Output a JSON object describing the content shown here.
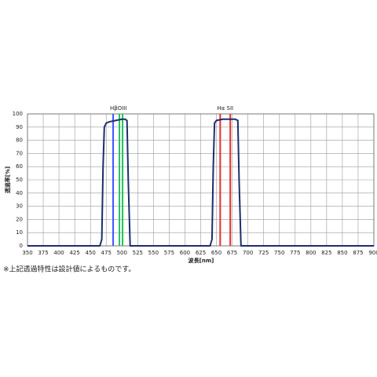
{
  "chart_data": {
    "type": "line",
    "x_label": "波長[nm]",
    "y_label": "透過率[%]",
    "x": [
      350,
      465,
      468,
      470,
      472,
      475,
      480,
      490,
      500,
      505,
      508,
      510,
      513,
      520,
      640,
      643,
      645,
      647,
      650,
      660,
      670,
      680,
      684,
      686,
      689,
      700,
      900
    ],
    "series": [
      {
        "color": "#1f2d6e",
        "values": [
          0,
          0,
          5,
          60,
          90,
          93,
          94,
          95,
          96,
          96,
          95,
          50,
          0,
          0,
          0,
          5,
          60,
          93,
          95,
          96,
          96,
          96,
          95,
          50,
          0,
          0,
          0
        ]
      }
    ],
    "line_groups": [
      {
        "label": "HβOIII",
        "lines": [
          {
            "x": 486,
            "color": "#3a55ff"
          },
          {
            "x": 496,
            "color": "#22c55e"
          },
          {
            "x": 501,
            "color": "#22c55e"
          }
        ]
      },
      {
        "label": "Hα  SII",
        "lines": [
          {
            "x": 656,
            "color": "#e53030"
          },
          {
            "x": 672,
            "color": "#e53030"
          }
        ]
      }
    ],
    "xlim": [
      350,
      900
    ],
    "xticks": [
      350,
      375,
      400,
      425,
      450,
      475,
      500,
      525,
      550,
      575,
      600,
      625,
      650,
      675,
      700,
      725,
      750,
      775,
      800,
      825,
      850,
      875,
      900
    ],
    "ylim": [
      0,
      100
    ],
    "yticks": [
      0,
      10,
      20,
      30,
      40,
      50,
      60,
      70,
      80,
      90,
      100
    ],
    "grid": true,
    "footnote": "※上記透過特性は設計値によるものです。"
  }
}
